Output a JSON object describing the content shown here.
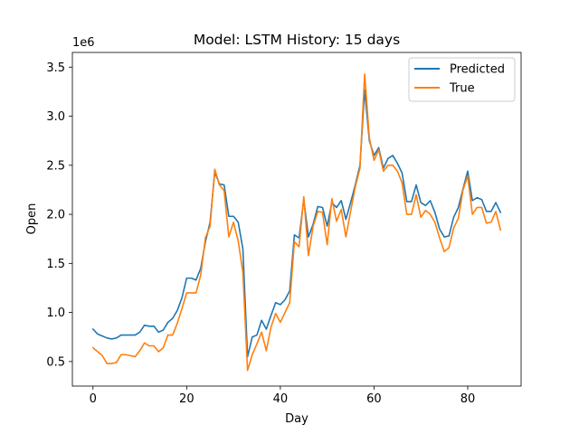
{
  "chart_data": {
    "type": "line",
    "title": "Model: LSTM  History: 15 days",
    "xlabel": "Day",
    "ylabel": "Open",
    "y_offset_label": "1e6",
    "xlim": [
      -4.4,
      91.4
    ],
    "ylim": [
      0.25,
      3.65
    ],
    "xticks": [
      0,
      20,
      40,
      60,
      80
    ],
    "yticks": [
      0.5,
      1.0,
      1.5,
      2.0,
      2.5,
      3.0,
      3.5
    ],
    "ytick_labels": [
      "0.5",
      "1.0",
      "1.5",
      "2.0",
      "2.5",
      "3.0",
      "3.5"
    ],
    "grid": false,
    "legend_position": "upper right",
    "x": [
      0,
      1,
      2,
      3,
      4,
      5,
      6,
      7,
      8,
      9,
      10,
      11,
      12,
      13,
      14,
      15,
      16,
      17,
      18,
      19,
      20,
      21,
      22,
      23,
      24,
      25,
      26,
      27,
      28,
      29,
      30,
      31,
      32,
      33,
      34,
      35,
      36,
      37,
      38,
      39,
      40,
      41,
      42,
      43,
      44,
      45,
      46,
      47,
      48,
      49,
      50,
      51,
      52,
      53,
      54,
      55,
      56,
      57,
      58,
      59,
      60,
      61,
      62,
      63,
      64,
      65,
      66,
      67,
      68,
      69,
      70,
      71,
      72,
      73,
      74,
      75,
      76,
      77,
      78,
      79,
      80,
      81,
      82,
      83,
      84,
      85,
      86,
      87
    ],
    "series": [
      {
        "name": "Predicted",
        "color": "#1f77b4",
        "values": [
          0.83,
          0.78,
          0.76,
          0.74,
          0.73,
          0.74,
          0.77,
          0.77,
          0.77,
          0.77,
          0.8,
          0.87,
          0.86,
          0.86,
          0.8,
          0.82,
          0.9,
          0.94,
          1.02,
          1.15,
          1.35,
          1.35,
          1.33,
          1.45,
          1.72,
          1.92,
          2.43,
          2.31,
          2.3,
          1.98,
          1.98,
          1.92,
          1.65,
          0.55,
          0.75,
          0.77,
          0.92,
          0.83,
          0.97,
          1.1,
          1.08,
          1.13,
          1.22,
          1.79,
          1.76,
          2.15,
          1.77,
          1.9,
          2.08,
          2.07,
          1.88,
          2.12,
          2.07,
          2.14,
          1.95,
          2.12,
          2.3,
          2.5,
          3.27,
          2.75,
          2.6,
          2.68,
          2.47,
          2.57,
          2.6,
          2.52,
          2.42,
          2.13,
          2.13,
          2.3,
          2.12,
          2.09,
          2.14,
          2.02,
          1.85,
          1.77,
          1.78,
          1.97,
          2.07,
          2.26,
          2.44,
          2.14,
          2.17,
          2.15,
          2.03,
          2.03,
          2.12,
          2.02
        ]
      },
      {
        "name": "True",
        "color": "#ff7f0e",
        "values": [
          0.64,
          0.6,
          0.56,
          0.48,
          0.48,
          0.49,
          0.57,
          0.57,
          0.56,
          0.55,
          0.61,
          0.69,
          0.66,
          0.66,
          0.6,
          0.64,
          0.77,
          0.77,
          0.89,
          1.04,
          1.2,
          1.2,
          1.2,
          1.38,
          1.76,
          1.88,
          2.46,
          2.3,
          2.24,
          1.77,
          1.92,
          1.73,
          1.41,
          0.41,
          0.57,
          0.68,
          0.8,
          0.61,
          0.85,
          0.99,
          0.9,
          1.0,
          1.1,
          1.72,
          1.67,
          2.18,
          1.58,
          1.88,
          2.03,
          2.02,
          1.69,
          2.16,
          1.93,
          2.05,
          1.77,
          2.03,
          2.28,
          2.47,
          3.43,
          2.78,
          2.55,
          2.66,
          2.44,
          2.5,
          2.5,
          2.44,
          2.32,
          2.0,
          2.0,
          2.2,
          1.97,
          2.04,
          2.0,
          1.92,
          1.76,
          1.62,
          1.66,
          1.86,
          1.96,
          2.25,
          2.39,
          2.0,
          2.07,
          2.07,
          1.91,
          1.92,
          2.03,
          1.84
        ]
      }
    ]
  }
}
